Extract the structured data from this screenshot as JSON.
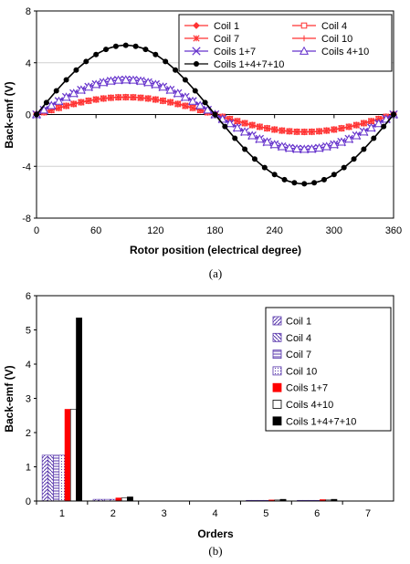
{
  "chart_data": [
    {
      "type": "line",
      "xlabel": "Rotor position (electrical degree)",
      "ylabel": "Back-emf (V)",
      "caption": "(a)",
      "xlim": [
        0,
        360
      ],
      "ylim": [
        -8,
        8
      ],
      "xticks": [
        "0",
        "60",
        "120",
        "180",
        "240",
        "300",
        "360"
      ],
      "yticks": [
        "8",
        "4",
        "0",
        "-4",
        "-8"
      ],
      "legend_position": "top-right",
      "series": [
        {
          "name": "Coil 1",
          "color": "#ff3333",
          "marker": "diamond",
          "amplitude": 1.34,
          "x": [
            0,
            45,
            90,
            135,
            180,
            225,
            270,
            315,
            360
          ],
          "y": [
            0,
            0.95,
            1.34,
            0.95,
            0,
            -0.95,
            -1.34,
            -0.95,
            0
          ]
        },
        {
          "name": "Coil 4",
          "color": "#ff3333",
          "marker": "square-open",
          "amplitude": 1.34,
          "x": [
            0,
            45,
            90,
            135,
            180,
            225,
            270,
            315,
            360
          ],
          "y": [
            0,
            0.95,
            1.34,
            0.95,
            0,
            -0.95,
            -1.34,
            -0.95,
            0
          ]
        },
        {
          "name": "Coil 7",
          "color": "#ff3333",
          "marker": "star",
          "amplitude": 1.34,
          "x": [
            0,
            45,
            90,
            135,
            180,
            225,
            270,
            315,
            360
          ],
          "y": [
            0,
            0.95,
            1.34,
            0.95,
            0,
            -0.95,
            -1.34,
            -0.95,
            0
          ]
        },
        {
          "name": "Coil 10",
          "color": "#ff3333",
          "marker": "plus",
          "amplitude": 1.34,
          "x": [
            0,
            45,
            90,
            135,
            180,
            225,
            270,
            315,
            360
          ],
          "y": [
            0,
            0.95,
            1.34,
            0.95,
            0,
            -0.95,
            -1.34,
            -0.95,
            0
          ]
        },
        {
          "name": "Coils 1+7",
          "color": "#6633cc",
          "marker": "x",
          "amplitude": 2.68,
          "x": [
            0,
            45,
            90,
            135,
            180,
            225,
            270,
            315,
            360
          ],
          "y": [
            0,
            1.9,
            2.68,
            1.9,
            0,
            -1.9,
            -2.68,
            -1.9,
            0
          ]
        },
        {
          "name": "Coils 4+10",
          "color": "#6633cc",
          "marker": "triangle-open",
          "amplitude": 2.68,
          "x": [
            0,
            45,
            90,
            135,
            180,
            225,
            270,
            315,
            360
          ],
          "y": [
            0,
            1.9,
            2.68,
            1.9,
            0,
            -1.9,
            -2.68,
            -1.9,
            0
          ]
        },
        {
          "name": "Coils 1+4+7+10",
          "color": "#000000",
          "marker": "circle",
          "amplitude": 5.35,
          "x": [
            0,
            45,
            90,
            135,
            180,
            225,
            270,
            315,
            360
          ],
          "y": [
            0,
            3.78,
            5.35,
            3.78,
            0,
            -3.78,
            -5.35,
            -3.78,
            0
          ]
        }
      ]
    },
    {
      "type": "bar",
      "xlabel": "Orders",
      "ylabel": "Back-emf (V)",
      "caption": "(b)",
      "ylim": [
        0,
        6
      ],
      "yticks": [
        "6",
        "5",
        "4",
        "3",
        "2",
        "1",
        "0"
      ],
      "categories": [
        "1",
        "2",
        "3",
        "4",
        "5",
        "6",
        "7"
      ],
      "legend_position": "right",
      "series": [
        {
          "name": "Coil 1",
          "fill": "diag-purple",
          "values": [
            1.34,
            0.05,
            0,
            0,
            0.02,
            0.02,
            0
          ]
        },
        {
          "name": "Coil 4",
          "fill": "diag-purple-rev",
          "values": [
            1.34,
            0.05,
            0,
            0,
            0.02,
            0.02,
            0
          ]
        },
        {
          "name": "Coil 7",
          "fill": "hstripe-purple",
          "values": [
            1.34,
            0.05,
            0,
            0,
            0.02,
            0.02,
            0
          ]
        },
        {
          "name": "Coil 10",
          "fill": "dot-purple",
          "values": [
            1.34,
            0.05,
            0,
            0,
            0.02,
            0.02,
            0
          ]
        },
        {
          "name": "Coils 1+7",
          "fill": "#ff0000",
          "values": [
            2.68,
            0.09,
            0,
            0,
            0.03,
            0.04,
            0
          ]
        },
        {
          "name": "Coils 4+10",
          "fill": "#ffffff",
          "values": [
            2.68,
            0.09,
            0,
            0,
            0.03,
            0.03,
            0
          ]
        },
        {
          "name": "Coils 1+4+7+10",
          "fill": "#000000",
          "values": [
            5.35,
            0.12,
            0,
            0,
            0.05,
            0.05,
            0
          ]
        }
      ]
    }
  ]
}
